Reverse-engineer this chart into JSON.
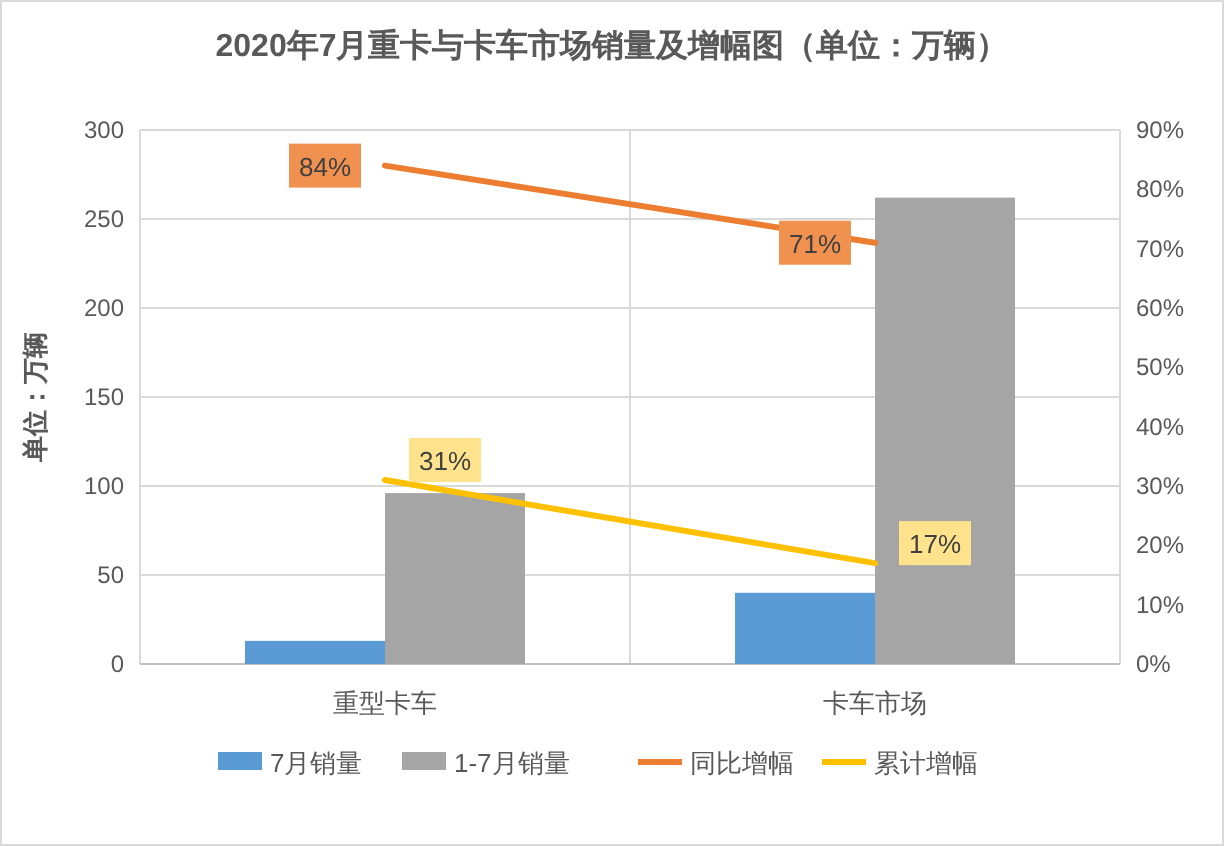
{
  "chart_data": {
    "type": "bar",
    "title": "2020年7月重卡与卡车市场销量及增幅图（单位：万辆）",
    "ylabel": "单位：万辆",
    "categories": [
      "重型卡车",
      "卡车市场"
    ],
    "series": [
      {
        "name": "7月销量",
        "color": "#5b9bd5",
        "values": [
          13,
          40
        ]
      },
      {
        "name": "1-7月销量",
        "color": "#a5a5a5",
        "values": [
          96,
          262
        ]
      },
      {
        "name": "同比增幅",
        "color": "#ed7d31",
        "type": "line",
        "axis": "y2",
        "values": [
          84,
          71
        ],
        "value_labels": [
          "84%",
          "71%"
        ]
      },
      {
        "name": "累计增幅",
        "color": "#ffc000",
        "type": "line",
        "axis": "y2",
        "values": [
          31,
          17
        ],
        "value_labels": [
          "31%",
          "17%"
        ]
      }
    ],
    "ylim": [
      0,
      300
    ],
    "yticks": [
      0,
      50,
      100,
      150,
      200,
      250,
      300
    ],
    "y2lim": [
      0,
      90
    ],
    "y2ticks": [
      {
        "value": 0,
        "label": "0%"
      },
      {
        "value": 10,
        "label": "10%"
      },
      {
        "value": 20,
        "label": "20%"
      },
      {
        "value": 30,
        "label": "30%"
      },
      {
        "value": 40,
        "label": "40%"
      },
      {
        "value": 50,
        "label": "50%"
      },
      {
        "value": 60,
        "label": "60%"
      },
      {
        "value": 70,
        "label": "70%"
      },
      {
        "value": 80,
        "label": "80%"
      },
      {
        "value": 90,
        "label": "90%"
      }
    ],
    "grid": true,
    "legend": "bottom"
  }
}
